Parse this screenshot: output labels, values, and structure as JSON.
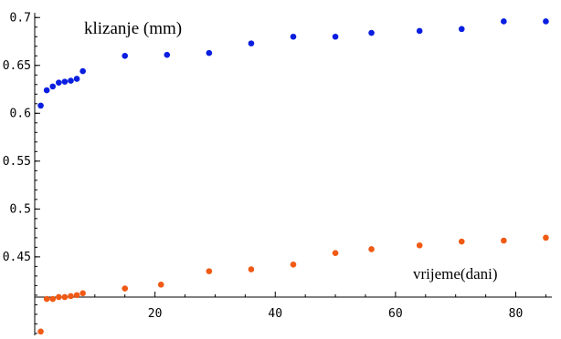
{
  "chart_data": {
    "type": "scatter",
    "ylabel": "klizanje (mm)",
    "xlabel": "vrijeme(dani)",
    "xlim": [
      0,
      86
    ],
    "ylim": [
      0.368,
      0.705
    ],
    "x_ticks": [
      20,
      40,
      60,
      80
    ],
    "y_ticks": [
      0.45,
      0.5,
      0.55,
      0.6,
      0.65,
      0.7
    ],
    "x_tick_labels": [
      "20",
      "40",
      "60",
      "80"
    ],
    "y_tick_labels": [
      "0.45",
      "0.5",
      "0.55",
      "0.6",
      "0.65",
      "0.7"
    ],
    "grid": false,
    "series": [
      {
        "color": "#0a1ee0",
        "x": [
          1,
          2,
          3,
          4,
          5,
          6,
          7,
          8,
          15,
          22,
          29,
          36,
          43,
          50,
          56,
          64,
          71,
          78,
          85
        ],
        "y": [
          0.608,
          0.624,
          0.628,
          0.632,
          0.633,
          0.634,
          0.636,
          0.644,
          0.66,
          0.661,
          0.663,
          0.673,
          0.68,
          0.68,
          0.684,
          0.686,
          0.688,
          0.696,
          0.696
        ]
      },
      {
        "color": "#f05a14",
        "x": [
          1,
          2,
          3,
          4,
          5,
          6,
          7,
          8,
          15,
          21,
          29,
          36,
          43,
          50,
          56,
          64,
          71,
          78,
          85
        ],
        "y": [
          0.372,
          0.406,
          0.406,
          0.408,
          0.408,
          0.409,
          0.41,
          0.412,
          0.417,
          0.421,
          0.435,
          0.437,
          0.442,
          0.454,
          0.458,
          0.462,
          0.466,
          0.467,
          0.47
        ]
      }
    ]
  }
}
